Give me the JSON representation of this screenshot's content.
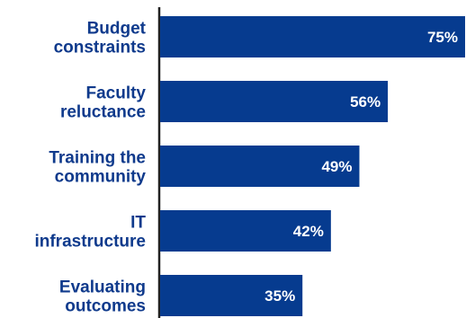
{
  "chart_data": {
    "type": "bar",
    "orientation": "horizontal",
    "categories": [
      [
        "Budget",
        "constraints"
      ],
      [
        "Faculty",
        "reluctance"
      ],
      [
        "Training the",
        "community"
      ],
      [
        "IT",
        "infrastructure"
      ],
      [
        "Evaluating",
        "outcomes"
      ]
    ],
    "values": [
      75,
      56,
      49,
      42,
      35
    ],
    "value_labels": [
      "75%",
      "56%",
      "49%",
      "42%",
      "35%"
    ],
    "xlim": [
      0,
      75
    ],
    "title": "",
    "xlabel": "",
    "ylabel": "",
    "grid": false,
    "legend": "none",
    "colors": {
      "bar": "#063b8f",
      "label": "#0f3a8c",
      "axis": "#222222",
      "value_text": "#ffffff"
    }
  }
}
